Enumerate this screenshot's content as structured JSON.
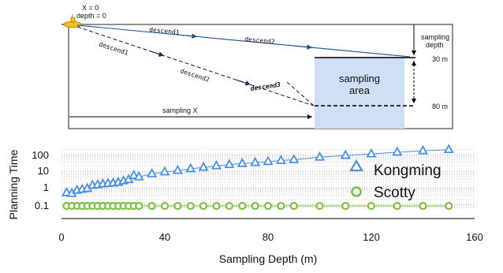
{
  "diagram": {
    "origin_label_x": "X = 0",
    "origin_label_depth": "depth = 0",
    "descend1_top": "descend1",
    "descend2_top": "descend2",
    "descend1_bottom": "descend1",
    "descend2_bottom": "descend2",
    "descend3": "descend3",
    "sampling_x": "sampling X",
    "sampling_depth_line1": "sampling",
    "sampling_depth_line2": "depth",
    "depth_30": "30 m",
    "depth_80": "80 m",
    "area_line1": "sampling",
    "area_line2": "area",
    "colors": {
      "solid_path": "#1b4f8a",
      "dashed_path": "#1b2f5a",
      "area": "#cfdff5",
      "area_text": "#1b3a6b"
    }
  },
  "chart_data": {
    "type": "scatter",
    "title": "",
    "xlabel": "Sampling Depth (m)",
    "ylabel": "Planning Time",
    "xlim": [
      0,
      160
    ],
    "xticks": [
      "0",
      "40",
      "80",
      "120",
      "160"
    ],
    "y_scale": "log",
    "yticks": [
      "0.1",
      "1",
      "10",
      "100"
    ],
    "ylim": [
      0.05,
      300
    ],
    "grid": "dotted horizontal",
    "legend_position": "right",
    "series": [
      {
        "name": "Kongming",
        "marker": "triangle",
        "color": "#4a90e2",
        "x": [
          2,
          4,
          6,
          8,
          10,
          12,
          14,
          16,
          18,
          20,
          22,
          24,
          26,
          28,
          30,
          35,
          40,
          45,
          50,
          55,
          60,
          65,
          70,
          75,
          80,
          85,
          90,
          100,
          110,
          120,
          130,
          140,
          150
        ],
        "y": [
          0.5,
          0.45,
          0.7,
          0.8,
          0.9,
          1.4,
          1.5,
          1.7,
          1.8,
          1.9,
          2.1,
          2.6,
          3.1,
          5.5,
          4.5,
          7,
          9,
          11,
          14,
          17,
          21,
          25,
          29,
          33,
          38,
          44,
          50,
          70,
          90,
          110,
          140,
          170,
          200
        ]
      },
      {
        "name": "Scotty",
        "marker": "circle",
        "color": "#7cc242",
        "x": [
          2,
          4,
          6,
          8,
          10,
          12,
          14,
          16,
          18,
          20,
          22,
          24,
          26,
          28,
          30,
          35,
          40,
          45,
          50,
          55,
          60,
          65,
          70,
          75,
          80,
          85,
          90,
          100,
          110,
          120,
          130,
          140,
          150
        ],
        "y": [
          0.08,
          0.08,
          0.08,
          0.08,
          0.08,
          0.08,
          0.08,
          0.08,
          0.08,
          0.08,
          0.08,
          0.08,
          0.08,
          0.08,
          0.08,
          0.08,
          0.08,
          0.08,
          0.08,
          0.08,
          0.08,
          0.08,
          0.08,
          0.08,
          0.08,
          0.08,
          0.08,
          0.08,
          0.08,
          0.08,
          0.08,
          0.08,
          0.08
        ]
      }
    ]
  }
}
